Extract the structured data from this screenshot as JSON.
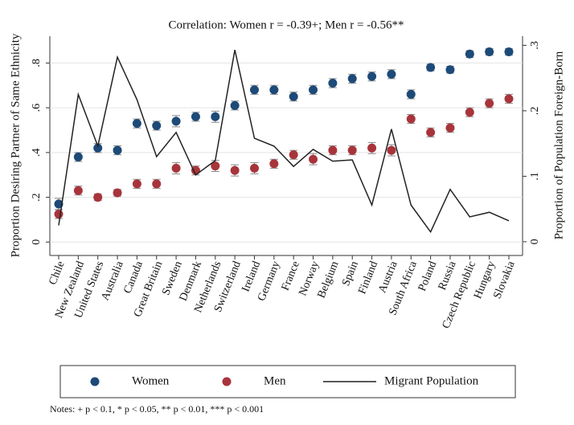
{
  "chart_data": {
    "type": "scatter",
    "subtitle": "Correlation: Women r = -0.39+; Men r = -0.56**",
    "ylabel": "Proportion Desiring Partner of Same Ethnicity",
    "y2label": "Proportion of Population Foreign-Born",
    "categories": [
      "Chile",
      "New Zealand",
      "United States",
      "Australia",
      "Canada",
      "Great Britain",
      "Sweden",
      "Denmark",
      "Netherlands",
      "Switzerland",
      "Ireland",
      "Germany",
      "France",
      "Norway",
      "Belgium",
      "Spain",
      "Finland",
      "Austria",
      "South Africa",
      "Poland",
      "Russia",
      "Czech Republic",
      "Hungary",
      "Slovakia"
    ],
    "series": [
      {
        "name": "Women",
        "color": "#1d4a78",
        "values": [
          0.17,
          0.38,
          0.42,
          0.41,
          0.53,
          0.52,
          0.54,
          0.56,
          0.56,
          0.61,
          0.68,
          0.68,
          0.65,
          0.68,
          0.71,
          0.73,
          0.74,
          0.75,
          0.66,
          0.78,
          0.77,
          0.84,
          0.85,
          0.85
        ],
        "errors": [
          0.025,
          0.02,
          0.02,
          0.02,
          0.02,
          0.02,
          0.025,
          0.02,
          0.025,
          0.02,
          0.02,
          0.02,
          0.02,
          0.02,
          0.02,
          0.02,
          0.02,
          0.02,
          0.02,
          0.015,
          0.015,
          0.015,
          0.015,
          0.015
        ]
      },
      {
        "name": "Men",
        "color": "#a8343b",
        "values": [
          0.125,
          0.23,
          0.2,
          0.22,
          0.26,
          0.26,
          0.33,
          0.32,
          0.34,
          0.32,
          0.33,
          0.35,
          0.39,
          0.37,
          0.41,
          0.41,
          0.42,
          0.41,
          0.55,
          0.49,
          0.51,
          0.58,
          0.62,
          0.64
        ],
        "errors": [
          0.02,
          0.02,
          0.015,
          0.015,
          0.02,
          0.02,
          0.025,
          0.02,
          0.025,
          0.025,
          0.025,
          0.02,
          0.02,
          0.025,
          0.02,
          0.02,
          0.025,
          0.025,
          0.02,
          0.02,
          0.02,
          0.02,
          0.02,
          0.02
        ]
      },
      {
        "name": "Migrant Population",
        "color": "#222222",
        "axis": "y2",
        "values": [
          0.025,
          0.225,
          0.146,
          0.282,
          0.217,
          0.13,
          0.167,
          0.102,
          0.124,
          0.293,
          0.158,
          0.146,
          0.115,
          0.141,
          0.123,
          0.125,
          0.056,
          0.172,
          0.056,
          0.015,
          0.08,
          0.038,
          0.045,
          0.032
        ]
      }
    ],
    "ylim": [
      -0.06,
      0.92
    ],
    "yticks": [
      0,
      {
        "value": 0.2,
        "label": ".2"
      },
      {
        "value": 0.4,
        "label": ".4"
      },
      {
        "value": 0.6,
        "label": ".6"
      },
      {
        "value": 0.8,
        "label": ".8"
      }
    ],
    "y2lim": [
      -0.021,
      0.314
    ],
    "y2ticks": [
      0,
      {
        "value": 0.1,
        "label": ".1"
      },
      {
        "value": 0.2,
        "label": ".2"
      },
      {
        "value": 0.3,
        "label": ".3"
      }
    ],
    "grid": true,
    "legend": "bottom",
    "notes": "Notes: + p < 0.1, * p < 0.05, ** p < 0.01, *** p < 0.001"
  }
}
